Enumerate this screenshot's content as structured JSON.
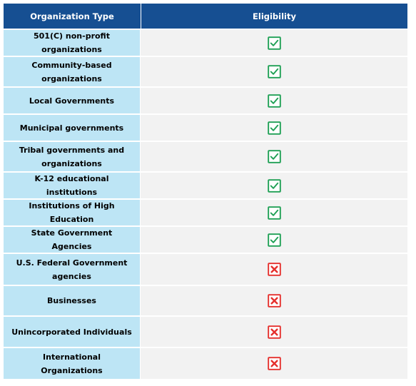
{
  "table": {
    "headers": {
      "type": "Organization Type",
      "eligibility": "Eligibility"
    },
    "rows": [
      {
        "type": "501(C) non-profit organizations",
        "eligible": true
      },
      {
        "type": "Community-based organizations",
        "eligible": true
      },
      {
        "type": "Local Governments",
        "eligible": true
      },
      {
        "type": "Municipal governments",
        "eligible": true
      },
      {
        "type": "Tribal governments and organizations",
        "eligible": true
      },
      {
        "type": "K-12 educational institutions",
        "eligible": true
      },
      {
        "type": "Institutions of High Education",
        "eligible": true
      },
      {
        "type": "State Government Agencies",
        "eligible": true
      },
      {
        "type": "U.S. Federal Government agencies",
        "eligible": false
      },
      {
        "type": "Businesses",
        "eligible": false
      },
      {
        "type": "Unincorporated Individuals",
        "eligible": false
      },
      {
        "type": "International Organizations",
        "eligible": false
      }
    ]
  },
  "icons": {
    "eligible": "check-box-icon",
    "ineligible": "cross-box-icon"
  },
  "colors": {
    "header_bg": "#164f92",
    "type_cell_bg": "#bde5f5",
    "eligibility_cell_bg": "#f2f2f2",
    "check": "#1fa055",
    "cross": "#e5302d"
  }
}
